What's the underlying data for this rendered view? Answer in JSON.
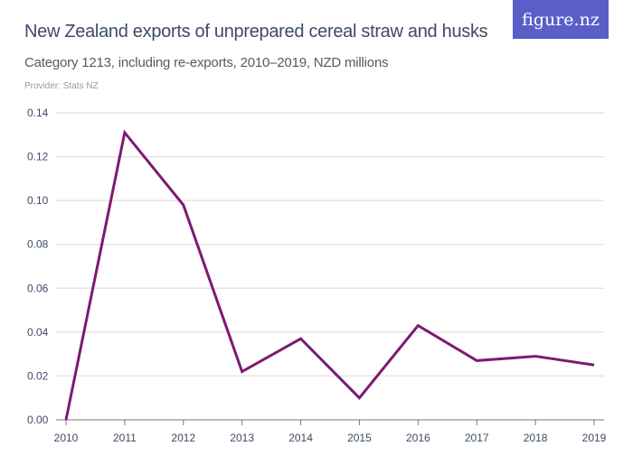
{
  "header": {
    "title": "New Zealand exports of unprepared cereal straw and husks",
    "subtitle": "Category 1213, including re-exports, 2010–2019, NZD millions",
    "provider": "Provider: Stats NZ",
    "logo": "figure.nz",
    "logo_color": "#5a5fc8"
  },
  "chart_data": {
    "type": "line",
    "title": "New Zealand exports of unprepared cereal straw and husks",
    "subtitle": "Category 1213, including re-exports, 2010–2019, NZD millions",
    "xlabel": "",
    "ylabel": "",
    "x": [
      "2010",
      "2011",
      "2012",
      "2013",
      "2014",
      "2015",
      "2016",
      "2017",
      "2018",
      "2019"
    ],
    "series": [
      {
        "values": [
          0.0,
          0.131,
          0.098,
          0.022,
          0.037,
          0.01,
          0.043,
          0.027,
          0.029,
          0.025
        ],
        "color": "#7d1a72"
      }
    ],
    "ylim": [
      0,
      0.14
    ],
    "yticks": [
      "0.00",
      "0.02",
      "0.04",
      "0.06",
      "0.08",
      "0.10",
      "0.12",
      "0.14"
    ],
    "grid": true,
    "legend": "none"
  }
}
